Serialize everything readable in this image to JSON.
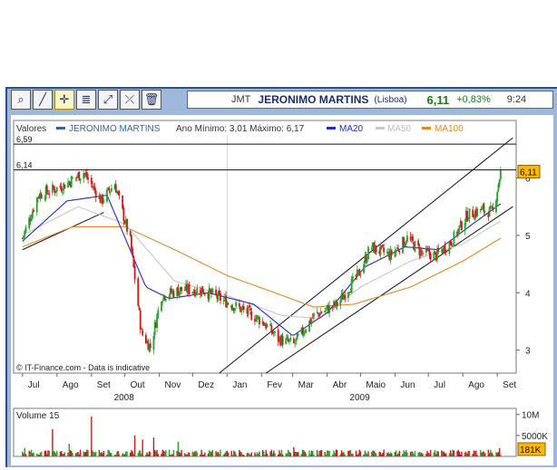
{
  "toolbar": {
    "tools": [
      {
        "name": "zoom-tool-icon",
        "glyph": "⌕",
        "active": false
      },
      {
        "name": "trendline-tool-icon",
        "glyph": "╱",
        "active": false
      },
      {
        "name": "crosshair-tool-icon",
        "glyph": "✛",
        "active": true
      },
      {
        "name": "fibonacci-tool-icon",
        "glyph": "≣",
        "active": false
      },
      {
        "name": "channel-tool-icon",
        "glyph": "⤢",
        "active": false
      },
      {
        "name": "delete-line-tool-icon",
        "glyph": "⤫",
        "active": false
      },
      {
        "name": "trash-icon",
        "glyph": "🗑",
        "active": false
      }
    ]
  },
  "quote": {
    "symbol": "JMT",
    "name": "JERONIMO MARTINS",
    "exchange": "(Lisboa)",
    "price": "6,11",
    "change": "+0,83%",
    "time": "9:24"
  },
  "legend": {
    "label": "Valores",
    "series_name": "JERONIMO MARTINS",
    "range_text": "Ano Mínimo: 3,01 Máximo: 6,17",
    "ma20": "MA20",
    "ma50": "MA50",
    "ma100": "MA100",
    "colors": {
      "series": "#3a5fa0",
      "ma20": "#1f2ad0",
      "ma50": "#c8c8c8",
      "ma100": "#e08a2a"
    }
  },
  "credit": "© IT-Finance.com - Data is indicative",
  "volume_label": "Volume 15",
  "chart_data": [
    {
      "type": "candlestick",
      "x_tick_labels": [
        "Jul",
        "Ago",
        "Set",
        "Out",
        "Nov",
        "Dez",
        "Jan",
        "Fev",
        "Mar",
        "Abr",
        "Maio",
        "Jun",
        "Jul",
        "Ago",
        "Set"
      ],
      "year_labels": [
        "2008",
        "2009"
      ],
      "y_tick_labels": [
        "3",
        "4",
        "5",
        "6"
      ],
      "ylim": [
        2.6,
        6.75
      ],
      "hlines": [
        {
          "label": "6,59",
          "value": 6.59
        },
        {
          "label": "6,14",
          "value": 6.14
        }
      ],
      "last_value_label": "6,11",
      "grid": true,
      "legend_position": "top",
      "close_path": [
        [
          "2008-07-01",
          4.95
        ],
        [
          "2008-07-15",
          5.7
        ],
        [
          "2008-08-05",
          5.85
        ],
        [
          "2008-08-25",
          6.1
        ],
        [
          "2008-09-10",
          5.6
        ],
        [
          "2008-09-22",
          5.9
        ],
        [
          "2008-10-06",
          4.9
        ],
        [
          "2008-10-16",
          3.3
        ],
        [
          "2008-10-24",
          3.05
        ],
        [
          "2008-11-03",
          3.95
        ],
        [
          "2008-11-20",
          4.05
        ],
        [
          "2008-12-10",
          4.05
        ],
        [
          "2009-01-05",
          3.8
        ],
        [
          "2009-01-20",
          3.65
        ],
        [
          "2009-02-02",
          3.5
        ],
        [
          "2009-02-16",
          3.2
        ],
        [
          "2009-03-02",
          3.1
        ],
        [
          "2009-03-20",
          3.6
        ],
        [
          "2009-04-10",
          3.8
        ],
        [
          "2009-04-30",
          4.35
        ],
        [
          "2009-05-10",
          4.8
        ],
        [
          "2009-05-28",
          4.65
        ],
        [
          "2009-06-12",
          4.95
        ],
        [
          "2009-06-25",
          4.7
        ],
        [
          "2009-07-08",
          4.65
        ],
        [
          "2009-07-22",
          4.9
        ],
        [
          "2009-08-05",
          5.35
        ],
        [
          "2009-08-18",
          5.45
        ],
        [
          "2009-08-28",
          5.4
        ],
        [
          "2009-09-04",
          6.11
        ]
      ],
      "ma20_path": [
        [
          "2008-07-01",
          4.9
        ],
        [
          "2008-08-10",
          5.6
        ],
        [
          "2008-09-15",
          5.7
        ],
        [
          "2008-10-20",
          4.1
        ],
        [
          "2008-11-10",
          3.9
        ],
        [
          "2008-12-15",
          4.0
        ],
        [
          "2009-01-25",
          3.8
        ],
        [
          "2009-03-01",
          3.25
        ],
        [
          "2009-04-01",
          3.65
        ],
        [
          "2009-05-05",
          4.45
        ],
        [
          "2009-06-10",
          4.8
        ],
        [
          "2009-07-10",
          4.75
        ],
        [
          "2009-08-10",
          5.2
        ],
        [
          "2009-09-04",
          5.55
        ]
      ],
      "ma50_path": [
        [
          "2008-07-01",
          5.0
        ],
        [
          "2008-08-20",
          5.5
        ],
        [
          "2008-10-01",
          5.2
        ],
        [
          "2008-11-15",
          4.2
        ],
        [
          "2009-01-01",
          3.95
        ],
        [
          "2009-02-20",
          3.6
        ],
        [
          "2009-03-25",
          3.55
        ],
        [
          "2009-05-01",
          4.1
        ],
        [
          "2009-06-15",
          4.55
        ],
        [
          "2009-08-01",
          4.85
        ],
        [
          "2009-09-04",
          5.25
        ]
      ],
      "ma100_path": [
        [
          "2008-07-01",
          4.8
        ],
        [
          "2008-08-15",
          5.15
        ],
        [
          "2008-10-01",
          5.15
        ],
        [
          "2008-11-15",
          4.75
        ],
        [
          "2009-01-01",
          4.3
        ],
        [
          "2009-02-20",
          3.95
        ],
        [
          "2009-03-20",
          3.75
        ],
        [
          "2009-04-25",
          3.8
        ],
        [
          "2009-06-15",
          4.1
        ],
        [
          "2009-08-01",
          4.55
        ],
        [
          "2009-09-04",
          4.95
        ]
      ],
      "channel_lines": [
        [
          [
            "2008-07-01",
            4.75
          ],
          [
            "2008-09-12",
            5.4
          ]
        ],
        [
          [
            "2008-12-25",
            2.6
          ],
          [
            "2009-09-15",
            6.7
          ]
        ],
        [
          [
            "2009-02-05",
            2.6
          ],
          [
            "2009-09-15",
            5.5
          ]
        ]
      ]
    },
    {
      "type": "bar",
      "title": "Volume 15",
      "y_tick_labels": [
        "10M",
        "5000K"
      ],
      "ylim": [
        0,
        11000000
      ],
      "last_value_label": "181K",
      "spikes": [
        [
          "2008-07-03",
          2000000
        ],
        [
          "2008-07-28",
          6500000
        ],
        [
          "2008-08-12",
          3000000
        ],
        [
          "2008-09-01",
          9500000
        ],
        [
          "2008-09-20",
          7500000
        ],
        [
          "2008-10-10",
          5000000
        ],
        [
          "2008-10-17",
          4000000
        ],
        [
          "2008-10-27",
          4500000
        ],
        [
          "2008-11-18",
          3500000
        ],
        [
          "2009-03-02",
          2200000
        ],
        [
          "2009-05-10",
          3000000
        ],
        [
          "2009-09-03",
          2000000
        ]
      ],
      "baseline": 900000
    }
  ]
}
